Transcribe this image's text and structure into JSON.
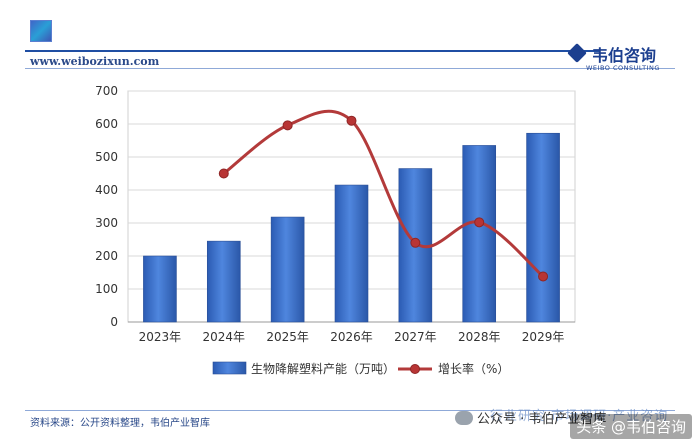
{
  "header": {
    "url": "www.weibozixun.com",
    "brand_cn": "韦伯咨询",
    "brand_en": "WEIBO CONSULTING"
  },
  "footer": {
    "source": "资料来源：公开资料整理，韦伯产业智库",
    "watermark": "行业研究·市场调研·产业咨询",
    "wechat": "公众号 · 韦伯产业智库",
    "toutiao": "头条 @韦伯咨询"
  },
  "colors": {
    "bar": "#3a6fc8",
    "line": "#b33a3a",
    "brand": "#1c3f8f"
  },
  "chart_data": {
    "type": "bar",
    "categories": [
      "2023年",
      "2024年",
      "2025年",
      "2026年",
      "2027年",
      "2028年",
      "2029年"
    ],
    "ylim": [
      0,
      700
    ],
    "yticks": [
      0,
      100,
      200,
      300,
      400,
      500,
      600,
      700
    ],
    "grid": true,
    "legend_position": "bottom",
    "series": [
      {
        "name": "生物降解塑料产能（万吨）",
        "type": "bar",
        "values": [
          200,
          245,
          318,
          415,
          465,
          535,
          572
        ]
      },
      {
        "name": "增长率（%）",
        "type": "line",
        "smooth": true,
        "values": [
          null,
          22.5,
          29.8,
          30.5,
          12.0,
          15.1,
          6.9
        ]
      }
    ]
  }
}
